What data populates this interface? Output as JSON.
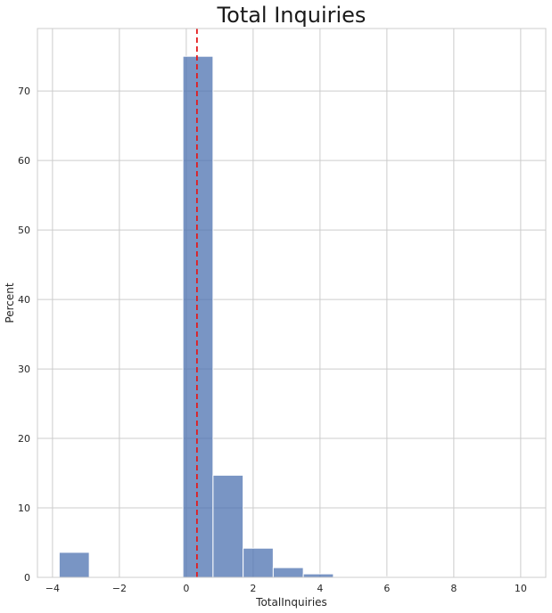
{
  "chart_data": {
    "type": "bar",
    "title": "Total Inquiries",
    "xlabel": "TotalInquiries",
    "ylabel": "Percent",
    "xlim": [
      -4.45,
      10.75
    ],
    "ylim": [
      0,
      79
    ],
    "xticks": [
      -4,
      -2,
      0,
      2,
      4,
      6,
      8,
      10
    ],
    "xtick_labels": [
      "−4",
      "−2",
      "0",
      "2",
      "4",
      "6",
      "8",
      "10"
    ],
    "yticks": [
      0,
      10,
      20,
      30,
      40,
      50,
      60,
      70
    ],
    "ytick_labels": [
      "0",
      "10",
      "20",
      "30",
      "40",
      "50",
      "60",
      "70"
    ],
    "grid": true,
    "bin_edges": [
      -3.8,
      -2.9,
      -2.0,
      -1.1,
      -0.1,
      0.8,
      1.7,
      2.6,
      3.5,
      4.4,
      5.3,
      6.2,
      7.1,
      8.0,
      8.9,
      9.8
    ],
    "values": [
      3.6,
      0,
      0,
      0,
      75.0,
      14.7,
      4.2,
      1.4,
      0.5,
      0.1,
      0.1,
      0.1,
      0,
      0,
      0.1
    ],
    "vline": {
      "x": 0.32,
      "color": "#e31a1c",
      "style": "dashed"
    },
    "colors": {
      "bar": "#4c72b0",
      "grid": "#cccccc"
    }
  }
}
